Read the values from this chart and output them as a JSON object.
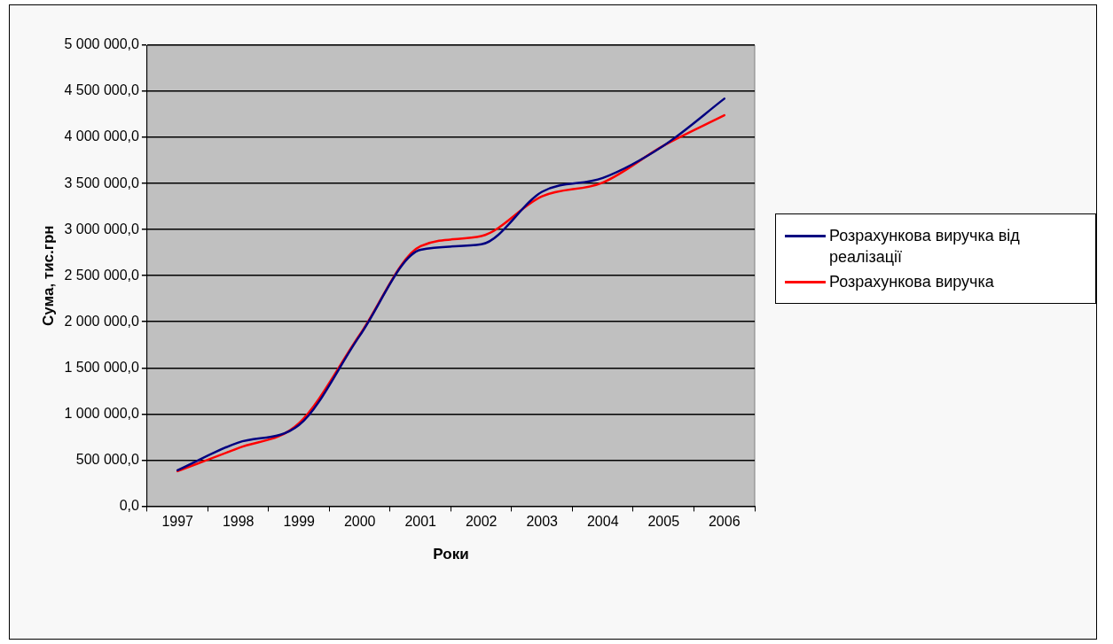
{
  "chart_data": {
    "type": "line",
    "xlabel": "Роки",
    "ylabel": "Сума, тис.грн",
    "categories": [
      "1997",
      "1998",
      "1999",
      "2000",
      "2001",
      "2002",
      "2003",
      "2004",
      "2005",
      "2006"
    ],
    "series": [
      {
        "name": "Розрахункова виручка від реалізації",
        "color": "#000080",
        "values": [
          390000,
          690000,
          880000,
          1850000,
          2780000,
          2840000,
          3410000,
          3560000,
          3910000,
          4420000
        ]
      },
      {
        "name": "Розрахункова виручка",
        "color": "#ff0000",
        "values": [
          380000,
          630000,
          900000,
          1860000,
          2820000,
          2930000,
          3360000,
          3510000,
          3910000,
          4240000
        ]
      }
    ],
    "ylim": [
      0,
      5000000
    ],
    "yticks": [
      {
        "value": 0,
        "label": "0,0"
      },
      {
        "value": 500000,
        "label": "500 000,0"
      },
      {
        "value": 1000000,
        "label": "1 000 000,0"
      },
      {
        "value": 1500000,
        "label": "1 500 000,0"
      },
      {
        "value": 2000000,
        "label": "2 000 000,0"
      },
      {
        "value": 2500000,
        "label": "2 500 000,0"
      },
      {
        "value": 3000000,
        "label": "3 000 000,0"
      },
      {
        "value": 3500000,
        "label": "3 500 000,0"
      },
      {
        "value": 4000000,
        "label": "4 000 000,0"
      },
      {
        "value": 4500000,
        "label": "4 500 000,0"
      },
      {
        "value": 5000000,
        "label": "5 000 000,0"
      }
    ],
    "grid": "y",
    "legend": "right",
    "marker": "none",
    "line_style": "solid"
  }
}
